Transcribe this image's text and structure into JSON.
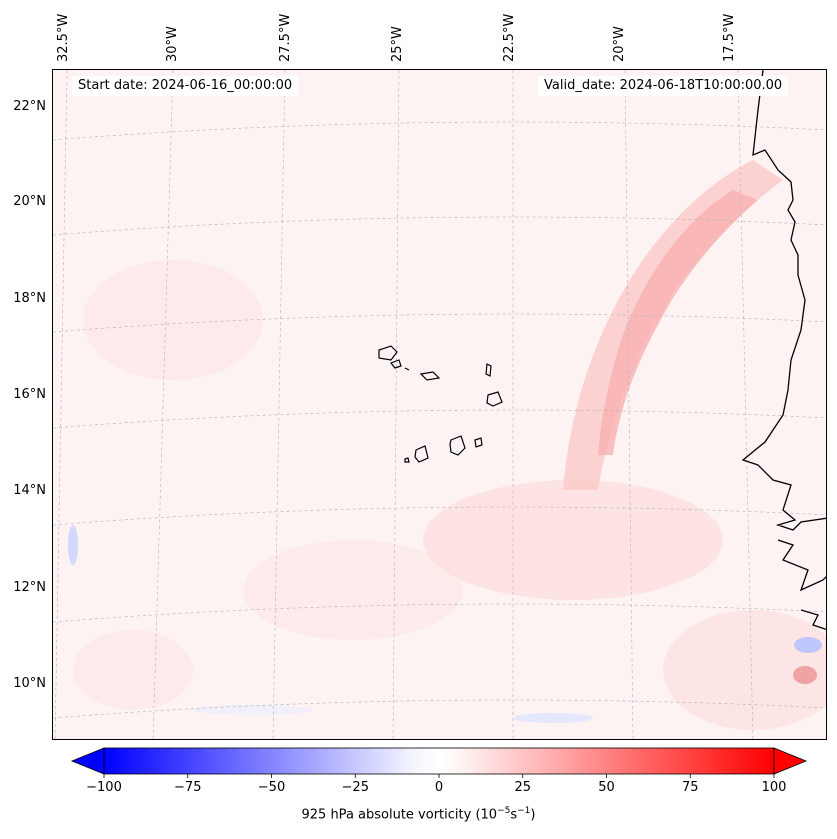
{
  "header": {
    "start_date": "Start date: 2024-06-16_00:00:00",
    "valid_date": "Valid_date: 2024-06-18T10:00:00.00"
  },
  "axes": {
    "longitude_labels": [
      "32.5°W",
      "30°W",
      "27.5°W",
      "25°W",
      "22.5°W",
      "20°W",
      "17.5°W"
    ],
    "latitude_labels": [
      "22°N",
      "20°N",
      "18°N",
      "16°N",
      "14°N",
      "12°N",
      "10°N"
    ]
  },
  "colorbar": {
    "title_prefix": "925 hPa absolute vorticity (10",
    "title_exp1": "−5",
    "title_mid": "s",
    "title_exp2": "−1",
    "title_suffix": ")",
    "ticks": [
      "−100",
      "−75",
      "−50",
      "−25",
      "0",
      "25",
      "50",
      "75",
      "100"
    ],
    "range": [
      -100,
      100
    ],
    "extend": "both",
    "colors": {
      "min": "#0000ff",
      "mid": "#ffffff",
      "max": "#ff0000"
    }
  },
  "map": {
    "projection": "lambert-like",
    "extent_lon": [
      -33,
      -16.5
    ],
    "extent_lat": [
      9,
      22.8
    ],
    "features": [
      "coastline-west-africa",
      "cape-verde-islands"
    ]
  }
}
